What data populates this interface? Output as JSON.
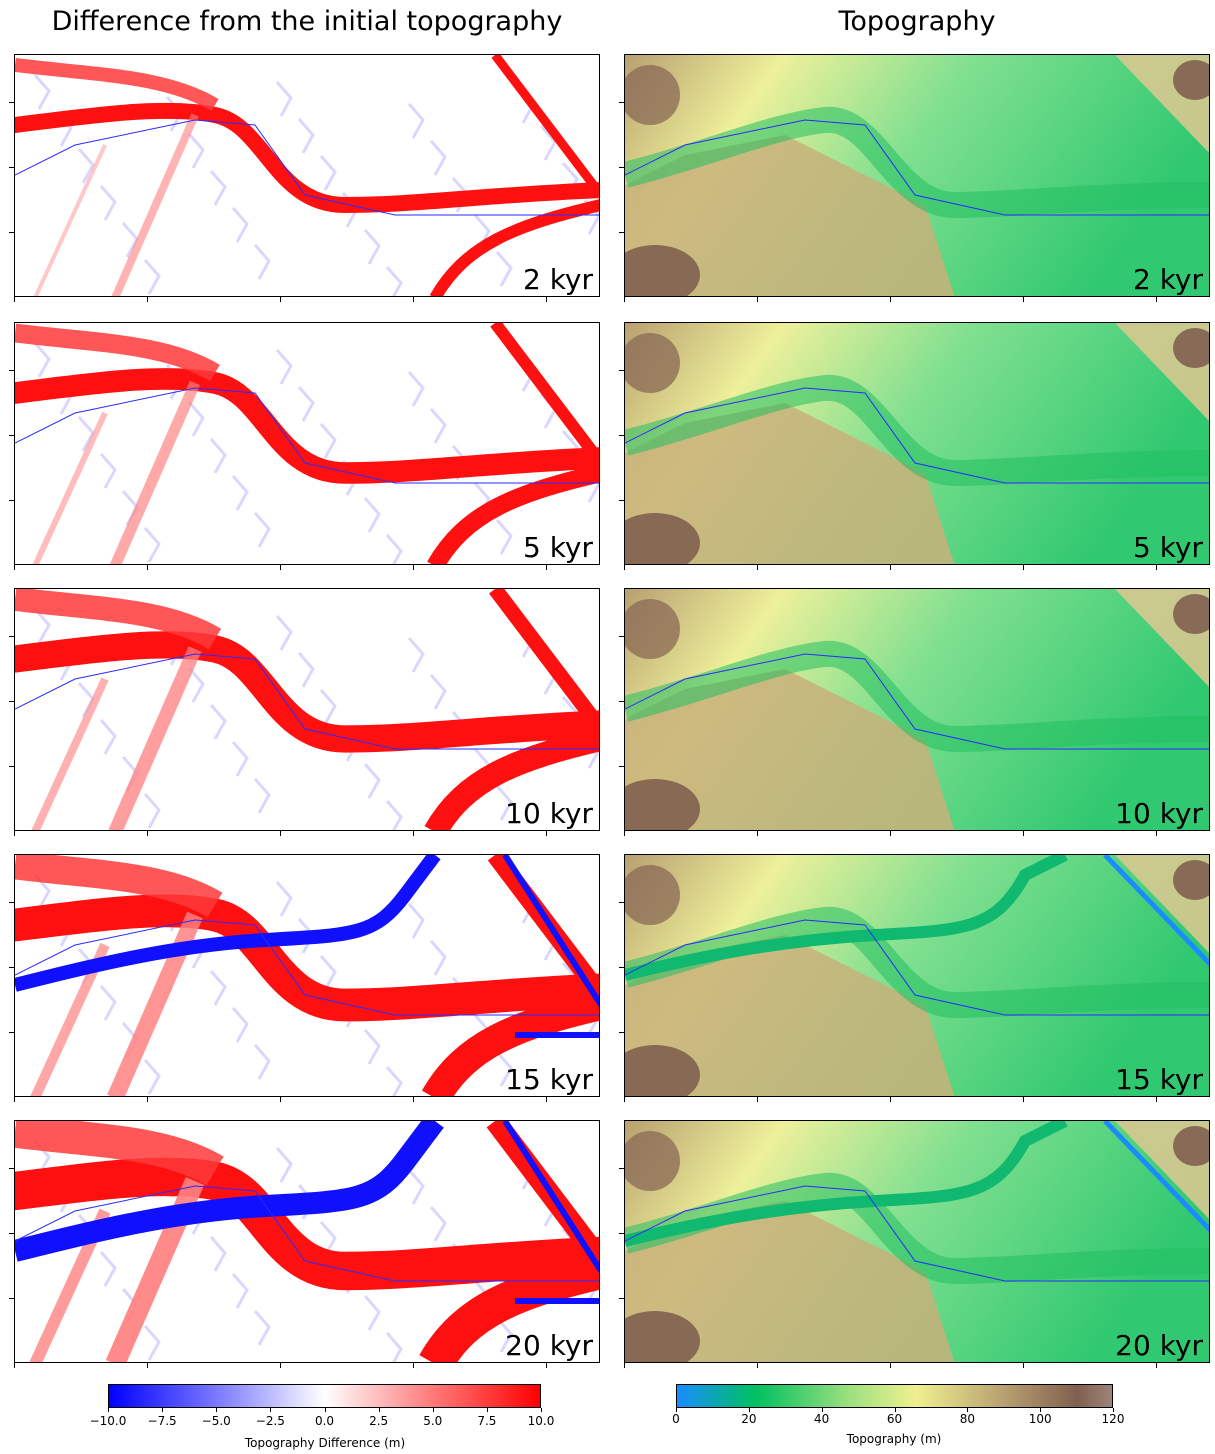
{
  "titles": {
    "left": "Difference from the initial topography",
    "right": "Topography"
  },
  "chart_data": [
    {
      "type": "heatmap",
      "title": "Difference from the initial topography",
      "panels": [
        "2 kyr",
        "5 kyr",
        "10 kyr",
        "15 kyr",
        "20 kyr"
      ],
      "colorbar": {
        "label": "Topography Difference (m)",
        "range": [
          -10.0,
          10.0
        ],
        "ticks": [
          "−10.0",
          "−7.5",
          "−5.0",
          "−2.5",
          "0.0",
          "2.5",
          "5.0",
          "7.5",
          "10.0"
        ],
        "colormap": "bwr",
        "colors": {
          "min": "#0000ff",
          "mid": "#ffffff",
          "max": "#ff0000"
        }
      }
    },
    {
      "type": "heatmap",
      "title": "Topography",
      "panels": [
        "2 kyr",
        "5 kyr",
        "10 kyr",
        "15 kyr",
        "20 kyr"
      ],
      "colorbar": {
        "label": "Topography (m)",
        "range": [
          0,
          120
        ],
        "ticks": [
          "0",
          "20",
          "40",
          "60",
          "80",
          "100",
          "120"
        ],
        "colormap": "terrain",
        "colors": {
          "low": "#1a8cff",
          "mid_low": "#00c060",
          "mid": "#f0f090",
          "high": "#806050"
        }
      }
    }
  ]
}
